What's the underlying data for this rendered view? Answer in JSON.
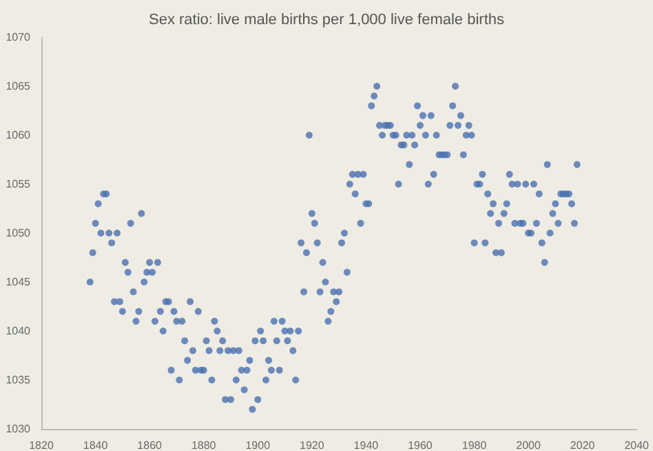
{
  "chart_data": {
    "type": "scatter",
    "title": "Sex ratio: live male births per 1,000 live female births",
    "marker": "circle",
    "grid": false,
    "x": [
      1838,
      1839,
      1840,
      1841,
      1842,
      1843,
      1844,
      1845,
      1846,
      1847,
      1848,
      1849,
      1850,
      1851,
      1852,
      1853,
      1854,
      1855,
      1856,
      1857,
      1858,
      1859,
      1860,
      1861,
      1862,
      1863,
      1864,
      1865,
      1866,
      1867,
      1868,
      1869,
      1870,
      1871,
      1872,
      1873,
      1874,
      1875,
      1876,
      1877,
      1878,
      1879,
      1880,
      1881,
      1882,
      1883,
      1884,
      1885,
      1886,
      1887,
      1888,
      1889,
      1890,
      1891,
      1892,
      1893,
      1894,
      1895,
      1896,
      1897,
      1898,
      1899,
      1900,
      1901,
      1902,
      1903,
      1904,
      1905,
      1906,
      1907,
      1908,
      1909,
      1910,
      1911,
      1912,
      1913,
      1914,
      1915,
      1916,
      1917,
      1918,
      1919,
      1920,
      1921,
      1922,
      1923,
      1924,
      1925,
      1926,
      1927,
      1928,
      1929,
      1930,
      1931,
      1932,
      1933,
      1934,
      1935,
      1936,
      1937,
      1938,
      1939,
      1940,
      1941,
      1942,
      1943,
      1944,
      1945,
      1946,
      1947,
      1948,
      1949,
      1950,
      1951,
      1952,
      1953,
      1954,
      1955,
      1956,
      1957,
      1958,
      1959,
      1960,
      1961,
      1962,
      1963,
      1964,
      1965,
      1966,
      1967,
      1968,
      1969,
      1970,
      1971,
      1972,
      1973,
      1974,
      1975,
      1976,
      1977,
      1978,
      1979,
      1980,
      1981,
      1982,
      1983,
      1984,
      1985,
      1986,
      1987,
      1988,
      1989,
      1990,
      1991,
      1992,
      1993,
      1994,
      1995,
      1996,
      1997,
      1998,
      1999,
      2000,
      2001,
      2002,
      2003,
      2004,
      2005,
      2006,
      2007,
      2008,
      2009,
      2010,
      2011,
      2012,
      2013,
      2014,
      2015,
      2016,
      2017,
      2018
    ],
    "series": [
      {
        "color": "#4a72b0",
        "values": [
          1045,
          1048,
          1051,
          1053,
          1050,
          1054,
          1054,
          1050,
          1049,
          1043,
          1050,
          1043,
          1042,
          1047,
          1046,
          1051,
          1044,
          1041,
          1042,
          1052,
          1045,
          1046,
          1047,
          1046,
          1041,
          1047,
          1042,
          1040,
          1043,
          1043,
          1036,
          1042,
          1041,
          1035,
          1041,
          1039,
          1037,
          1043,
          1038,
          1036,
          1042,
          1036,
          1036,
          1039,
          1038,
          1035,
          1041,
          1040,
          1038,
          1039,
          1033,
          1038,
          1033,
          1038,
          1035,
          1038,
          1036,
          1034,
          1036,
          1037,
          1032,
          1039,
          1033,
          1040,
          1039,
          1035,
          1037,
          1036,
          1041,
          1039,
          1036,
          1041,
          1040,
          1039,
          1040,
          1038,
          1035,
          1040,
          1049,
          1044,
          1048,
          1060,
          1052,
          1051,
          1049,
          1044,
          1047,
          1045,
          1041,
          1042,
          1044,
          1043,
          1044,
          1049,
          1050,
          1046,
          1055,
          1056,
          1054,
          1056,
          1051,
          1056,
          1053,
          1053,
          1063,
          1064,
          1065,
          1061,
          1060,
          1061,
          1061,
          1061,
          1060,
          1060,
          1055,
          1059,
          1059,
          1060,
          1057,
          1060,
          1059,
          1063,
          1061,
          1062,
          1060,
          1055,
          1062,
          1056,
          1060,
          1058,
          1058,
          1058,
          1058,
          1061,
          1063,
          1065,
          1061,
          1062,
          1058,
          1060,
          1061,
          1060,
          1049,
          1055,
          1055,
          1056,
          1049,
          1054,
          1052,
          1053,
          1048,
          1051,
          1048,
          1052,
          1053,
          1056,
          1055,
          1051,
          1055,
          1051,
          1051,
          1055,
          1050,
          1050,
          1055,
          1051,
          1054,
          1049,
          1047,
          1057,
          1050,
          1052,
          1053,
          1051,
          1054,
          1054,
          1054,
          1054,
          1053,
          1051,
          1057
        ]
      }
    ],
    "xlim": [
      1820,
      2040
    ],
    "xticks": [
      1820,
      1840,
      1860,
      1880,
      1900,
      1920,
      1940,
      1960,
      1980,
      2000,
      2020,
      2040
    ],
    "ylim": [
      1030,
      1070
    ],
    "yticks": [
      1030,
      1035,
      1040,
      1045,
      1050,
      1055,
      1060,
      1065,
      1070
    ]
  }
}
